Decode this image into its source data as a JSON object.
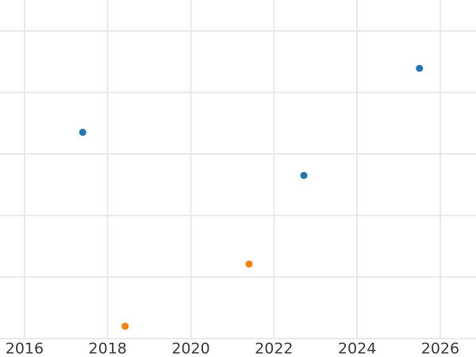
{
  "chart_data": {
    "type": "scatter",
    "title": "",
    "xlabel": "",
    "ylabel": "",
    "x_ticks": [
      2016,
      2018,
      2020,
      2022,
      2024,
      2026
    ],
    "x_tick_labels": [
      "2016",
      "2018",
      "2020",
      "2022",
      "2024",
      "2026"
    ],
    "xlim": [
      2015.41,
      2026.86
    ],
    "ylim": [
      -0.3,
      5.5
    ],
    "y_gridlines": [
      0,
      1,
      2,
      3,
      4,
      5
    ],
    "y_tick_labels_visible": false,
    "y_units": "unlabeled-gridline-units",
    "grid": true,
    "legend_position": "none",
    "series": [
      {
        "name": "blue-series",
        "color": "#1f77b4",
        "points": [
          {
            "x": 2017.4,
            "y": 3.35
          },
          {
            "x": 2022.72,
            "y": 2.65
          },
          {
            "x": 2025.5,
            "y": 4.39
          }
        ]
      },
      {
        "name": "orange-series",
        "color": "#ff7f0e",
        "points": [
          {
            "x": 2018.42,
            "y": 0.2
          },
          {
            "x": 2021.4,
            "y": 1.21
          }
        ]
      }
    ]
  },
  "style": {
    "background_color": "#ffffff",
    "gridline_color": "#e7e7e7",
    "tick_label_color": "#3d3d3d",
    "tick_font_size": 19,
    "point_radius": 4.5,
    "gridline_width": 1.8
  }
}
